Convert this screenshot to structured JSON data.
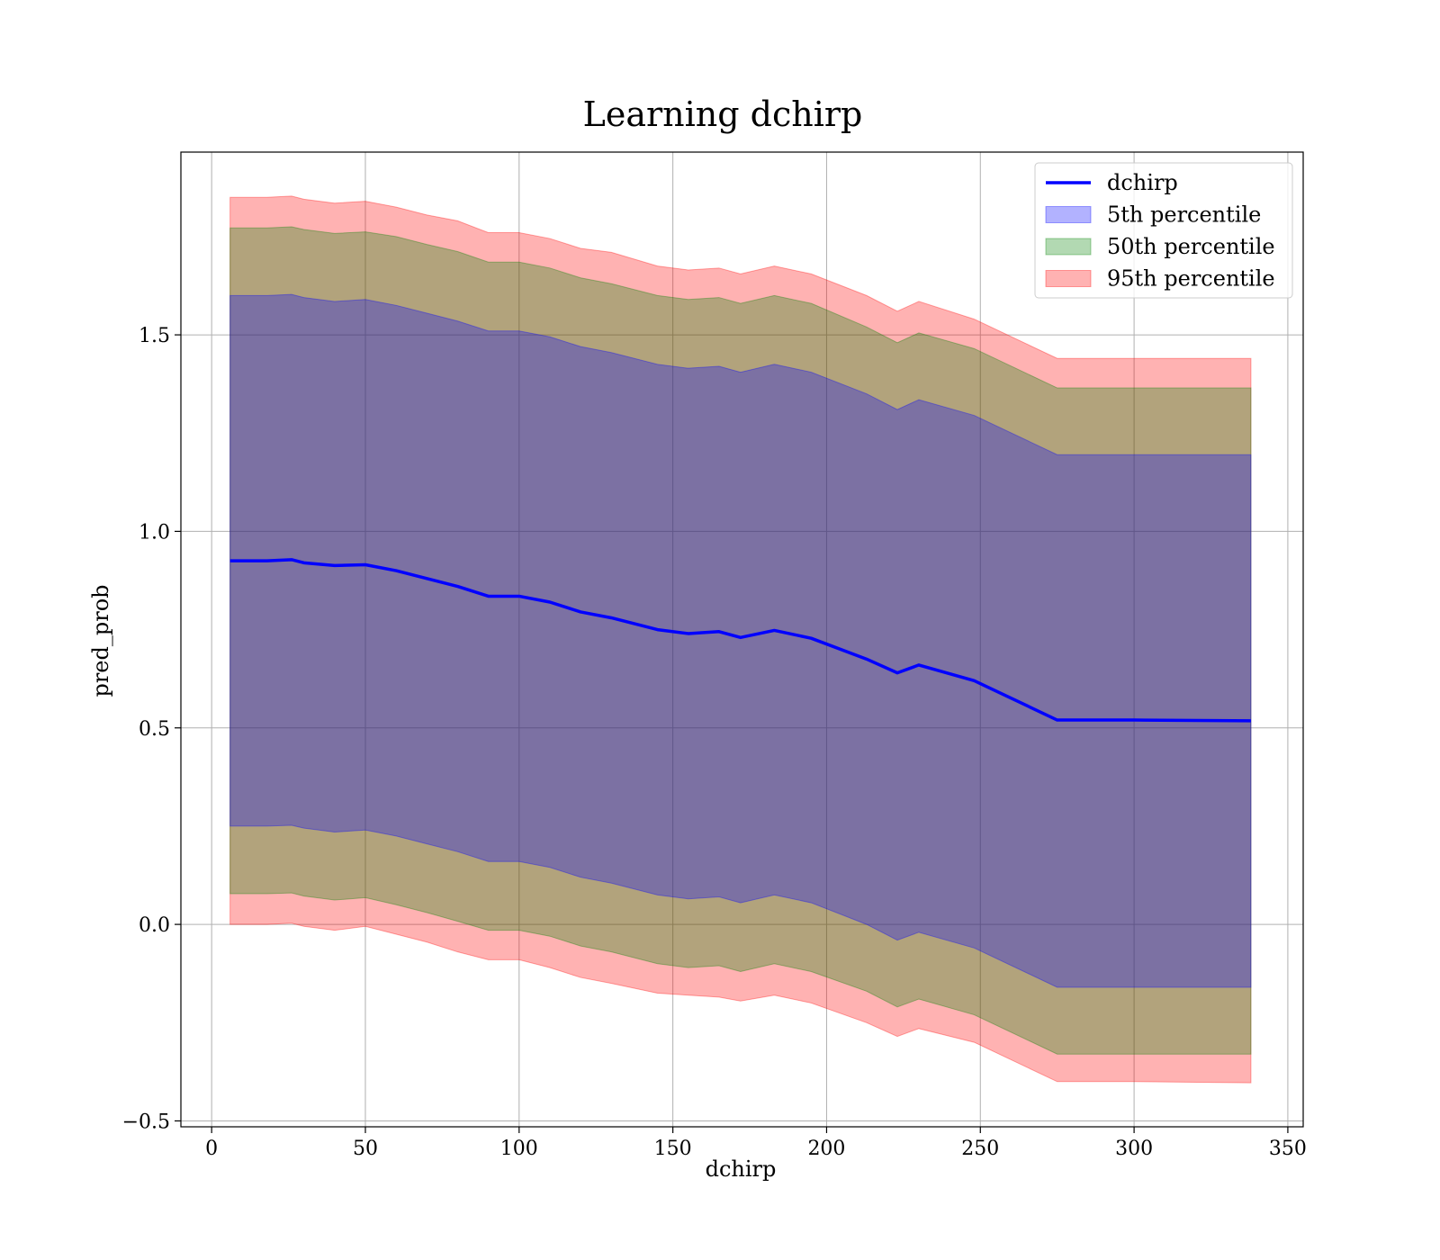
{
  "chart_data": {
    "type": "area",
    "title": "Learning dchirp",
    "xlabel": "dchirp",
    "ylabel": "pred_prob",
    "xlim": [
      -10,
      355
    ],
    "ylim": [
      -0.515,
      1.965
    ],
    "xticks": [
      0,
      50,
      100,
      150,
      200,
      250,
      300,
      350
    ],
    "yticks": [
      -0.5,
      0.0,
      0.5,
      1.0,
      1.5
    ],
    "xtick_labels": [
      "0",
      "50",
      "100",
      "150",
      "200",
      "250",
      "300",
      "350"
    ],
    "ytick_labels": [
      "−0.5",
      "0.0",
      "0.5",
      "1.0",
      "1.5"
    ],
    "grid": true,
    "legend_position": "top-right",
    "x": [
      6,
      18,
      26,
      30,
      40,
      50,
      60,
      70,
      80,
      90,
      100,
      110,
      120,
      130,
      145,
      155,
      165,
      172,
      183,
      195,
      213,
      223,
      230,
      248,
      275,
      300,
      338
    ],
    "line": {
      "name": "dchirp",
      "color": "#0000ff",
      "values": [
        0.925,
        0.925,
        0.928,
        0.92,
        0.913,
        0.915,
        0.9,
        0.88,
        0.86,
        0.835,
        0.835,
        0.82,
        0.795,
        0.78,
        0.75,
        0.74,
        0.745,
        0.73,
        0.748,
        0.728,
        0.675,
        0.64,
        0.66,
        0.62,
        0.52,
        0.52,
        0.518
      ]
    },
    "bands": [
      {
        "name": "95th percentile",
        "color": "#ff0000",
        "opacity": 0.3,
        "lower": [
          0.0,
          0.0,
          0.003,
          -0.005,
          -0.015,
          -0.005,
          -0.025,
          -0.045,
          -0.07,
          -0.09,
          -0.09,
          -0.11,
          -0.135,
          -0.15,
          -0.175,
          -0.18,
          -0.185,
          -0.195,
          -0.18,
          -0.2,
          -0.25,
          -0.285,
          -0.265,
          -0.3,
          -0.4,
          -0.4,
          -0.403
        ],
        "upper": [
          1.85,
          1.85,
          1.853,
          1.845,
          1.835,
          1.84,
          1.825,
          1.805,
          1.79,
          1.76,
          1.76,
          1.745,
          1.72,
          1.71,
          1.675,
          1.665,
          1.67,
          1.655,
          1.675,
          1.655,
          1.6,
          1.56,
          1.585,
          1.54,
          1.44,
          1.44,
          1.44
        ]
      },
      {
        "name": "50th percentile",
        "color": "#008000",
        "opacity": 0.3,
        "lower": [
          0.078,
          0.078,
          0.08,
          0.072,
          0.062,
          0.068,
          0.05,
          0.03,
          0.008,
          -0.015,
          -0.015,
          -0.03,
          -0.055,
          -0.07,
          -0.1,
          -0.11,
          -0.105,
          -0.12,
          -0.1,
          -0.12,
          -0.17,
          -0.21,
          -0.19,
          -0.23,
          -0.33,
          -0.33,
          -0.33
        ]
      },
      {
        "name": "5th percentile",
        "color": "#0000ff",
        "opacity": 0.3,
        "lower": [
          0.25,
          0.25,
          0.252,
          0.245,
          0.235,
          0.24,
          0.225,
          0.205,
          0.185,
          0.16,
          0.16,
          0.145,
          0.12,
          0.105,
          0.075,
          0.065,
          0.07,
          0.055,
          0.075,
          0.055,
          0.0,
          -0.04,
          -0.02,
          -0.06,
          -0.16,
          -0.16,
          -0.16
        ],
        "upper": [
          1.6,
          1.6,
          1.603,
          1.595,
          1.585,
          1.59,
          1.575,
          1.555,
          1.535,
          1.51,
          1.51,
          1.495,
          1.47,
          1.455,
          1.425,
          1.415,
          1.42,
          1.405,
          1.425,
          1.405,
          1.35,
          1.31,
          1.335,
          1.295,
          1.195,
          1.195,
          1.195
        ]
      }
    ],
    "legend": [
      {
        "label": "dchirp",
        "kind": "line",
        "color": "#0000ff"
      },
      {
        "label": "5th percentile",
        "kind": "patch",
        "color": "#0000ff"
      },
      {
        "label": "50th percentile",
        "kind": "patch",
        "color": "#008000"
      },
      {
        "label": "95th percentile",
        "kind": "patch",
        "color": "#ff0000"
      }
    ]
  }
}
